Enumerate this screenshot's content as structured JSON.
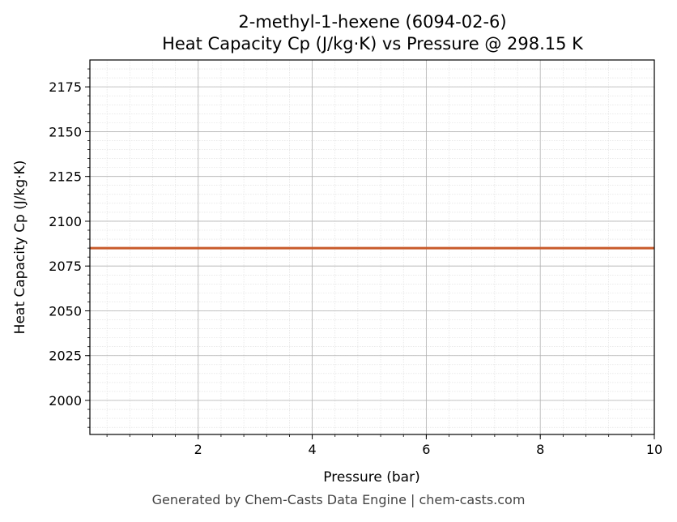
{
  "chart_data": {
    "type": "line",
    "title": "2-methyl-1-hexene (6094-02-6)",
    "subtitle": "Heat Capacity Cp (J/kg·K) vs Pressure @ 298.15 K",
    "xlabel": "Pressure (bar)",
    "ylabel": "Heat Capacity Cp (J/kg·K)",
    "xlim": [
      0.1,
      10
    ],
    "ylim": [
      1981,
      2190
    ],
    "xticks": [
      2,
      4,
      6,
      8,
      10
    ],
    "yticks": [
      2000,
      2025,
      2050,
      2075,
      2100,
      2125,
      2150,
      2175
    ],
    "grid": true,
    "series": [
      {
        "x": [
          0.1,
          10
        ],
        "y": [
          2085,
          2085
        ]
      }
    ],
    "colors": {
      "line": "#c85a2a",
      "major_grid": "#b0b0b0",
      "minor_grid": "#dddddd",
      "axes": "#000000"
    }
  },
  "footer": "Generated by Chem-Casts Data Engine | chem-casts.com"
}
